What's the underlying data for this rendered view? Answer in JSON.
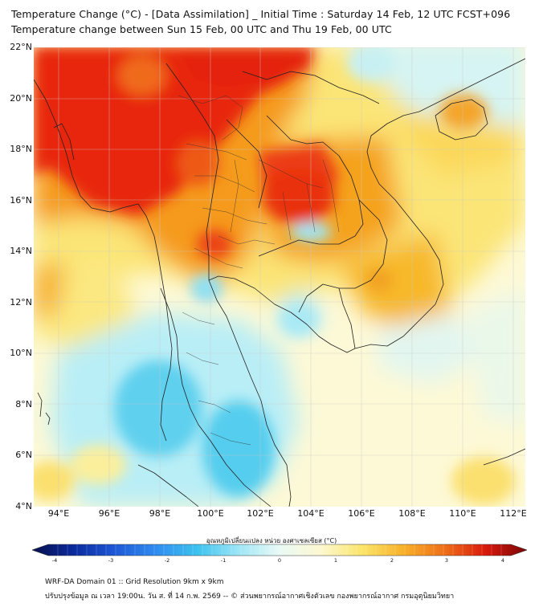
{
  "title": {
    "line1": "Temperature Change (°C) - [Data Assimilation] _ Initial Time : Saturday 14 Feb, 12 UTC FCST+096",
    "line2": "Temperature change between Sun 15 Feb, 00 UTC and Thu 19 Feb, 00 UTC"
  },
  "map": {
    "lat_labels": [
      "22°N",
      "20°N",
      "18°N",
      "16°N",
      "14°N",
      "12°N",
      "10°N",
      "8°N",
      "6°N",
      "4°N"
    ],
    "lon_labels": [
      "94°E",
      "96°E",
      "98°E",
      "100°E",
      "102°E",
      "104°E",
      "106°E",
      "108°E",
      "110°E",
      "112°E"
    ],
    "extent": {
      "lon_min": 93.0,
      "lon_max": 112.5,
      "lat_min": 4.0,
      "lat_max": 22.2
    },
    "grid": true,
    "field_description_levels": {
      "hot": "#e8220e",
      "warm": "#f6a21a",
      "mild": "#fbe46a",
      "neutral": "#fdfbe0",
      "cool": "#a6ecf6",
      "cold": "#48c9ec"
    },
    "warm_cores": [
      {
        "lon": 97.0,
        "lat": 19.0,
        "value": 3.2
      },
      {
        "lon": 95.5,
        "lat": 17.0,
        "value": 3.0
      },
      {
        "lon": 103.0,
        "lat": 16.5,
        "value": 3.0
      },
      {
        "lon": 100.5,
        "lat": 14.5,
        "value": 2.8
      },
      {
        "lon": 99.8,
        "lat": 16.8,
        "value": 2.8
      },
      {
        "lon": 101.5,
        "lat": 22.0,
        "value": 3.0
      },
      {
        "lon": 110.0,
        "lat": 19.5,
        "value": 2.0
      }
    ],
    "cool_cores": [
      {
        "lon": 98.5,
        "lat": 7.8,
        "value": -1.2
      },
      {
        "lon": 101.3,
        "lat": 5.8,
        "value": -1.4
      },
      {
        "lon": 100.8,
        "lat": 12.7,
        "value": -0.8
      },
      {
        "lon": 104.3,
        "lat": 14.3,
        "value": -0.6
      },
      {
        "lon": 106.8,
        "lat": 21.7,
        "value": -0.5
      },
      {
        "lon": 104.5,
        "lat": 11.0,
        "value": -0.6
      }
    ]
  },
  "colorbar": {
    "title": "อุณหภูมิเปลี่ยนแปลง หน่วย องศาเซลเซียส (°C)",
    "ticks": [
      "-4",
      "-3",
      "-2",
      "-1",
      "0",
      "1",
      "2",
      "3",
      "4"
    ],
    "range": [
      -4,
      4
    ],
    "colors": [
      "#08104e",
      "#0a2a9c",
      "#1e58d6",
      "#2f8cf0",
      "#3cc2ee",
      "#9de6f6",
      "#eafaf6",
      "#fdf8d0",
      "#fbe56a",
      "#f8b12a",
      "#ef6f18",
      "#d81a0c",
      "#7a0606"
    ]
  },
  "footer": {
    "line1": "WRF-DA Domain 01 :: Grid Resolution 9km x 9km",
    "line2": "ปรับปรุงข้อมูล ณ เวลา 19:00น. วัน ส. ที่ 14 ก.พ. 2569 -- © ส่วนพยากรณ์อากาศเชิงตัวเลข กองพยากรณ์อากาศ กรมอุตุนิยมวิทยา"
  }
}
